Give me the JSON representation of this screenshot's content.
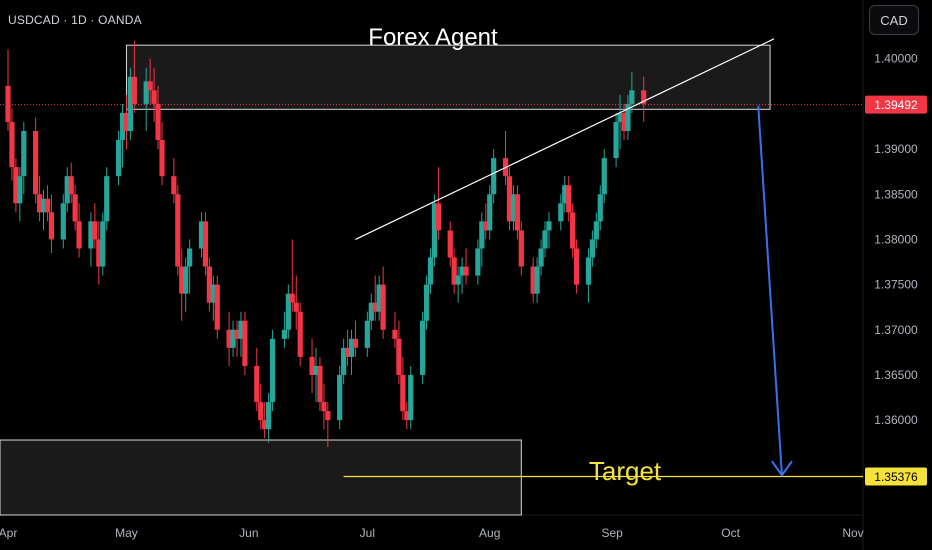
{
  "header": {
    "symbol": "USDCAD · 1D · OANDA",
    "currency_button": "CAD"
  },
  "chart_data": {
    "type": "candlestick",
    "title": "Forex Agent",
    "symbol": "USDCAD",
    "timeframe": "1D",
    "source": "OANDA",
    "currency": "CAD",
    "ylim": [
      1.3495,
      1.4065
    ],
    "y_ticks": [
      "1.40000",
      "1.39000",
      "1.38500",
      "1.38000",
      "1.37500",
      "1.37000",
      "1.36500",
      "1.36000"
    ],
    "x_ticks": [
      "Apr",
      "May",
      "Jun",
      "Jul",
      "Aug",
      "Sep",
      "Oct",
      "Nov"
    ],
    "last_price": "1.39492",
    "target_price": "1.35376",
    "target_label": "Target",
    "colors": {
      "up": "#26a69a",
      "down": "#f23645",
      "trendline": "#ffffff",
      "zone_fill": "#1f1f1f",
      "zone_border": "#d9d9d9",
      "target_line": "#f5e23a",
      "projection_arrow": "#3b6ff0",
      "last_price_tag": "#f23645",
      "target_tag": "#f5e23a"
    },
    "zones": [
      {
        "name": "resistance-zone",
        "start": "May 1",
        "end": "Oct 11",
        "high": 1.4015,
        "low": 1.3944
      },
      {
        "name": "support-zone",
        "start": "Apr 1",
        "end": "Aug 9",
        "high": 1.3578,
        "low": 1.3495
      }
    ],
    "trendline": {
      "start": [
        "Jun 28",
        1.38
      ],
      "end": [
        "Oct 12",
        1.4022
      ]
    },
    "projection_arrow": {
      "start": [
        "Oct 8",
        1.3948
      ],
      "end": [
        "Oct 14",
        1.3539
      ]
    },
    "candles": [
      [
        1.397,
        1.401,
        1.392,
        1.393
      ],
      [
        1.393,
        1.3945,
        1.3865,
        1.388
      ],
      [
        1.388,
        1.389,
        1.383,
        1.384
      ],
      [
        1.384,
        1.388,
        1.382,
        1.387
      ],
      [
        1.387,
        1.393,
        1.385,
        1.392
      ],
      [
        1.392,
        1.3935,
        1.384,
        1.385
      ],
      [
        1.385,
        1.387,
        1.382,
        1.383
      ],
      [
        1.383,
        1.3855,
        1.381,
        1.3845
      ],
      [
        1.3845,
        1.386,
        1.382,
        1.383
      ],
      [
        1.383,
        1.385,
        1.3785,
        1.38
      ],
      [
        1.38,
        1.385,
        1.379,
        1.384
      ],
      [
        1.384,
        1.388,
        1.383,
        1.387
      ],
      [
        1.387,
        1.3885,
        1.384,
        1.385
      ],
      [
        1.385,
        1.386,
        1.381,
        1.382
      ],
      [
        1.382,
        1.384,
        1.378,
        1.379
      ],
      [
        1.379,
        1.383,
        1.377,
        1.382
      ],
      [
        1.382,
        1.384,
        1.379,
        1.38
      ],
      [
        1.38,
        1.382,
        1.375,
        1.377
      ],
      [
        1.377,
        1.383,
        1.376,
        1.382
      ],
      [
        1.382,
        1.388,
        1.381,
        1.387
      ],
      [
        1.387,
        1.392,
        1.386,
        1.391
      ],
      [
        1.391,
        1.395,
        1.388,
        1.394
      ],
      [
        1.394,
        1.396,
        1.39,
        1.392
      ],
      [
        1.392,
        1.399,
        1.391,
        1.398
      ],
      [
        1.398,
        1.402,
        1.394,
        1.395
      ],
      [
        1.395,
        1.399,
        1.392,
        1.3975
      ],
      [
        1.3975,
        1.4,
        1.395,
        1.3965
      ],
      [
        1.3965,
        1.399,
        1.393,
        1.395
      ],
      [
        1.395,
        1.397,
        1.39,
        1.391
      ],
      [
        1.391,
        1.393,
        1.386,
        1.387
      ],
      [
        1.387,
        1.389,
        1.384,
        1.385
      ],
      [
        1.385,
        1.386,
        1.376,
        1.377
      ],
      [
        1.377,
        1.379,
        1.371,
        1.374
      ],
      [
        1.374,
        1.378,
        1.372,
        1.377
      ],
      [
        1.377,
        1.38,
        1.374,
        1.379
      ],
      [
        1.379,
        1.383,
        1.378,
        1.382
      ],
      [
        1.382,
        1.383,
        1.376,
        1.377
      ],
      [
        1.377,
        1.378,
        1.372,
        1.373
      ],
      [
        1.373,
        1.376,
        1.371,
        1.375
      ],
      [
        1.375,
        1.376,
        1.369,
        1.37
      ],
      [
        1.37,
        1.372,
        1.366,
        1.368
      ],
      [
        1.368,
        1.371,
        1.367,
        1.37
      ],
      [
        1.37,
        1.371,
        1.367,
        1.369
      ],
      [
        1.369,
        1.372,
        1.367,
        1.371
      ],
      [
        1.371,
        1.372,
        1.365,
        1.366
      ],
      [
        1.366,
        1.368,
        1.361,
        1.362
      ],
      [
        1.362,
        1.364,
        1.359,
        1.36
      ],
      [
        1.36,
        1.362,
        1.358,
        1.359
      ],
      [
        1.359,
        1.363,
        1.3575,
        1.362
      ],
      [
        1.362,
        1.37,
        1.361,
        1.369
      ],
      [
        1.369,
        1.372,
        1.368,
        1.37
      ],
      [
        1.37,
        1.375,
        1.369,
        1.374
      ],
      [
        1.374,
        1.38,
        1.372,
        1.373
      ],
      [
        1.373,
        1.376,
        1.37,
        1.372
      ],
      [
        1.372,
        1.373,
        1.366,
        1.367
      ],
      [
        1.367,
        1.369,
        1.363,
        1.365
      ],
      [
        1.365,
        1.368,
        1.362,
        1.366
      ],
      [
        1.366,
        1.367,
        1.361,
        1.362
      ],
      [
        1.362,
        1.364,
        1.359,
        1.361
      ],
      [
        1.361,
        1.362,
        1.357,
        1.36
      ],
      [
        1.36,
        1.366,
        1.359,
        1.365
      ],
      [
        1.365,
        1.369,
        1.364,
        1.368
      ],
      [
        1.368,
        1.37,
        1.366,
        1.367
      ],
      [
        1.367,
        1.37,
        1.365,
        1.369
      ],
      [
        1.369,
        1.371,
        1.367,
        1.368
      ],
      [
        1.368,
        1.372,
        1.367,
        1.371
      ],
      [
        1.371,
        1.374,
        1.37,
        1.373
      ],
      [
        1.373,
        1.376,
        1.371,
        1.372
      ],
      [
        1.372,
        1.376,
        1.371,
        1.375
      ],
      [
        1.375,
        1.377,
        1.369,
        1.37
      ],
      [
        1.37,
        1.372,
        1.368,
        1.369
      ],
      [
        1.369,
        1.371,
        1.364,
        1.365
      ],
      [
        1.365,
        1.367,
        1.36,
        1.361
      ],
      [
        1.361,
        1.362,
        1.359,
        1.36
      ],
      [
        1.36,
        1.366,
        1.359,
        1.365
      ],
      [
        1.365,
        1.372,
        1.364,
        1.371
      ],
      [
        1.371,
        1.376,
        1.37,
        1.375
      ],
      [
        1.375,
        1.379,
        1.374,
        1.378
      ],
      [
        1.378,
        1.385,
        1.377,
        1.384
      ],
      [
        1.384,
        1.388,
        1.38,
        1.381
      ],
      [
        1.381,
        1.382,
        1.377,
        1.378
      ],
      [
        1.378,
        1.379,
        1.374,
        1.375
      ],
      [
        1.375,
        1.377,
        1.373,
        1.376
      ],
      [
        1.376,
        1.378,
        1.374,
        1.377
      ],
      [
        1.377,
        1.379,
        1.375,
        1.376
      ],
      [
        1.376,
        1.38,
        1.375,
        1.379
      ],
      [
        1.379,
        1.383,
        1.377,
        1.382
      ],
      [
        1.382,
        1.384,
        1.38,
        1.381
      ],
      [
        1.381,
        1.386,
        1.38,
        1.385
      ],
      [
        1.385,
        1.39,
        1.384,
        1.389
      ],
      [
        1.389,
        1.392,
        1.386,
        1.387
      ],
      [
        1.387,
        1.388,
        1.381,
        1.382
      ],
      [
        1.382,
        1.386,
        1.381,
        1.385
      ],
      [
        1.385,
        1.386,
        1.38,
        1.381
      ],
      [
        1.381,
        1.382,
        1.376,
        1.377
      ],
      [
        1.377,
        1.378,
        1.373,
        1.374
      ],
      [
        1.374,
        1.378,
        1.373,
        1.377
      ],
      [
        1.377,
        1.38,
        1.376,
        1.379
      ],
      [
        1.379,
        1.382,
        1.378,
        1.381
      ],
      [
        1.381,
        1.383,
        1.379,
        1.382
      ],
      [
        1.382,
        1.385,
        1.381,
        1.384
      ],
      [
        1.384,
        1.387,
        1.383,
        1.386
      ],
      [
        1.386,
        1.387,
        1.382,
        1.383
      ],
      [
        1.383,
        1.384,
        1.378,
        1.379
      ],
      [
        1.379,
        1.38,
        1.374,
        1.375
      ],
      [
        1.375,
        1.379,
        1.373,
        1.378
      ],
      [
        1.378,
        1.381,
        1.377,
        1.38
      ],
      [
        1.38,
        1.383,
        1.379,
        1.382
      ],
      [
        1.382,
        1.386,
        1.381,
        1.385
      ],
      [
        1.385,
        1.39,
        1.384,
        1.389
      ],
      [
        1.389,
        1.394,
        1.388,
        1.393
      ],
      [
        1.393,
        1.396,
        1.39,
        1.394
      ],
      [
        1.394,
        1.395,
        1.391,
        1.392
      ],
      [
        1.392,
        1.396,
        1.391,
        1.395
      ],
      [
        1.395,
        1.3985,
        1.394,
        1.3965
      ],
      [
        1.3965,
        1.398,
        1.393,
        1.395
      ]
    ]
  }
}
